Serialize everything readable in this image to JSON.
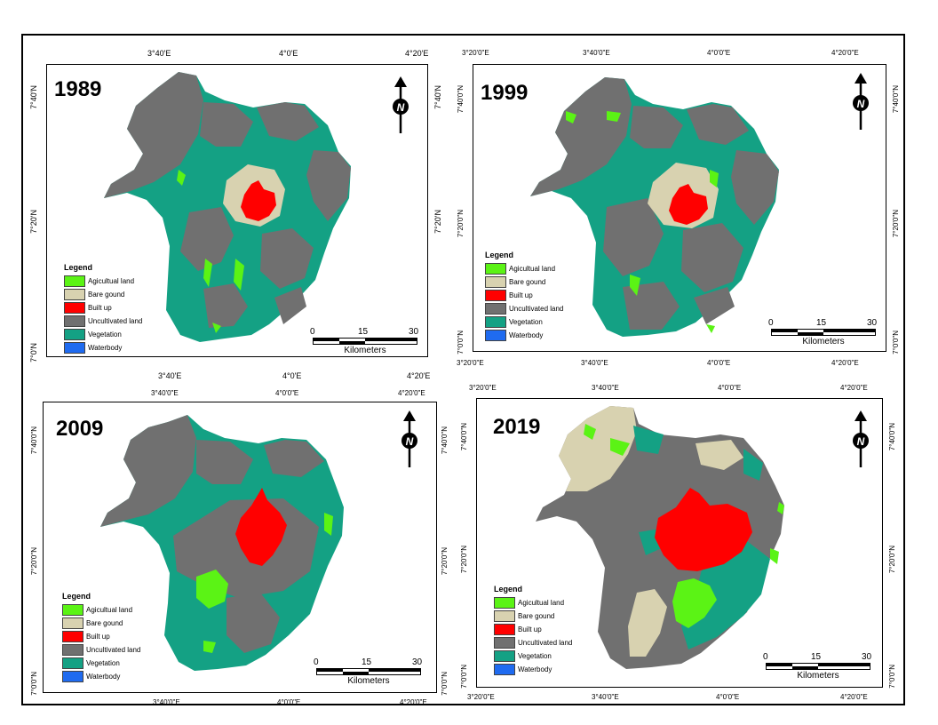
{
  "legend": {
    "title": "Legend",
    "items": [
      {
        "label": "Agicultual land",
        "color": "#5BF315"
      },
      {
        "label": "Bare gound",
        "color": "#D8D2B0"
      },
      {
        "label": "Built up",
        "color": "#FF0000"
      },
      {
        "label": "Uncultivated land",
        "color": "#707070"
      },
      {
        "label": "Vegetation",
        "color": "#14A184"
      },
      {
        "label": "Waterbody",
        "color": "#1F6BF0"
      }
    ]
  },
  "scale": {
    "labels": [
      "0",
      "15",
      "30"
    ],
    "unit": "Kilometers"
  },
  "north_label": "N",
  "panels": [
    {
      "year": "1989",
      "top_ticks": [
        "3°40'E",
        "4°0'E",
        "4°20'E"
      ],
      "bottom_ticks": [
        "3°40'E",
        "4°0'E",
        "4°20'E"
      ],
      "left_ticks": [
        "7°40'N",
        "7°20'N",
        "7°0'N"
      ],
      "right_ticks": [
        "7°40'N",
        "7°20'N"
      ]
    },
    {
      "year": "1999",
      "top_ticks": [
        "3°20'0\"E",
        "3°40'0\"E",
        "4°0'0\"E",
        "4°20'0\"E"
      ],
      "bottom_ticks": [
        "3°20'0\"E",
        "3°40'0\"E",
        "4°0'0\"E",
        "4°20'0\"E"
      ],
      "left_ticks": [
        "7°40'0\"N",
        "7°20'0\"N",
        "7°0'0\"N"
      ],
      "right_ticks": [
        "7°40'0\"N",
        "7°20'0\"N",
        "7°0'0\"N"
      ]
    },
    {
      "year": "2009",
      "top_ticks": [
        "3°40'0\"E",
        "4°0'0\"E",
        "4°20'0\"E"
      ],
      "bottom_ticks": [
        "3°40'0\"E",
        "4°0'0\"E",
        "4°20'0\"E"
      ],
      "left_ticks": [
        "7°40'0\"N",
        "7°20'0\"N",
        "7°0'0\"N"
      ],
      "right_ticks": [
        "7°40'0\"N",
        "7°20'0\"N",
        "7°0'0\"N"
      ]
    },
    {
      "year": "2019",
      "top_ticks": [
        "3°20'0\"E",
        "3°40'0\"E",
        "4°0'0\"E",
        "4°20'0\"E"
      ],
      "bottom_ticks": [
        "3°20'0\"E",
        "3°40'0\"E",
        "4°0'0\"E",
        "4°20'0\"E"
      ],
      "left_ticks": [
        "7°40'0\"N",
        "7°20'0\"N",
        "7°0'0\"N"
      ],
      "right_ticks": [
        "7°40'0\"N",
        "7°20'0\"N",
        "7°0'0\"N"
      ]
    }
  ]
}
